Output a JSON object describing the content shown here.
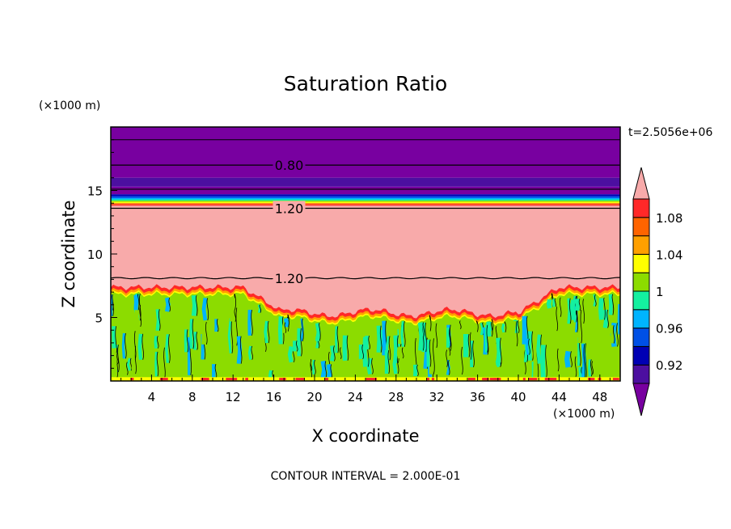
{
  "chart_data": {
    "type": "heatmap",
    "title": "Saturation Ratio",
    "xlabel": "X coordinate",
    "ylabel": "Z coordinate",
    "x_unit": "(×1000 m)",
    "y_unit": "(×1000 m)",
    "xlim": [
      0,
      50
    ],
    "ylim": [
      0,
      20
    ],
    "x_ticks": [
      4,
      8,
      12,
      16,
      20,
      24,
      28,
      32,
      36,
      40,
      44,
      48
    ],
    "y_ticks": [
      5,
      10,
      15
    ],
    "time_label": "t=2.5056e+06",
    "footer": "CONTOUR INTERVAL = 2.000E-01",
    "contour_labels": [
      {
        "text": "0.80",
        "x": 17.5,
        "z": 17.0
      },
      {
        "text": "1.20",
        "x": 17.5,
        "z": 13.6
      },
      {
        "text": "1.20",
        "x": 17.5,
        "z": 8.1
      }
    ],
    "colorbar": {
      "levels": [
        0.9,
        0.92,
        0.94,
        0.96,
        0.98,
        1.0,
        1.02,
        1.04,
        1.06,
        1.08,
        1.1
      ],
      "tick_labels": [
        "0.92",
        "0.96",
        "1",
        "1.04",
        "1.08"
      ],
      "colors": [
        "#7800a0",
        "#4c0fa0",
        "#0000b4",
        "#0050e6",
        "#00b4ff",
        "#14f0a0",
        "#8cdc00",
        "#ffff00",
        "#ffa000",
        "#ff6400",
        "#ff2828",
        "#f8aaaa"
      ]
    },
    "layers": [
      {
        "z_top": 20.0,
        "z_bottom": 16.0,
        "level": "<0.90"
      },
      {
        "z_top": 16.0,
        "z_bottom": 15.3,
        "level": "0.90-0.92"
      },
      {
        "z_top": 15.3,
        "z_bottom": 14.7,
        "level": "<0.90"
      },
      {
        "z_top": 14.7,
        "z_bottom": 13.8,
        "level": "0.92-1.10"
      },
      {
        "z_top": 13.8,
        "z_bottom": 7.3,
        "level": ">1.10"
      },
      {
        "z_top": 7.3,
        "z_bottom": 0.0,
        "level": "0.98-1.04"
      }
    ]
  }
}
